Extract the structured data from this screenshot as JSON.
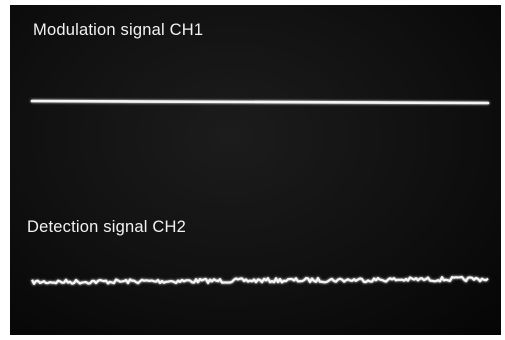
{
  "channels": [
    {
      "label": "Modulation signal CH1",
      "trace": "flat"
    },
    {
      "label": "Detection signal CH2",
      "trace": "noisy"
    }
  ],
  "colors": {
    "background": "#101010",
    "trace": "#f4f4f4",
    "text": "#f2f2f2"
  }
}
